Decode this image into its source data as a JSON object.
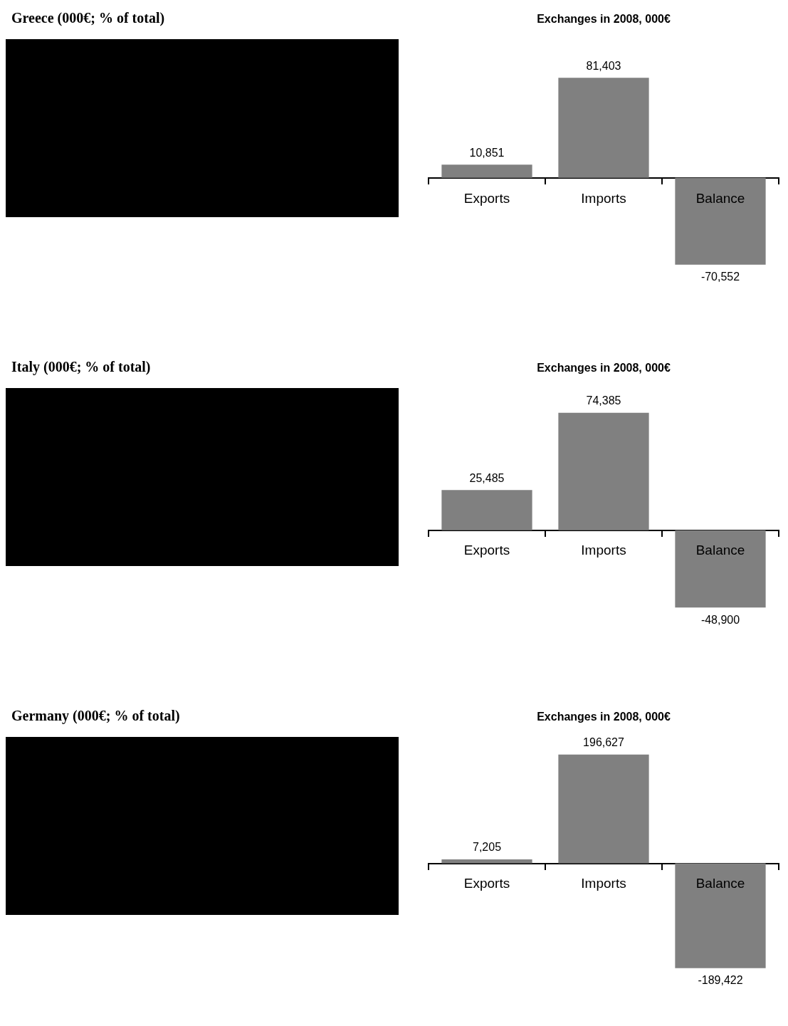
{
  "chart_data": [
    {
      "type": "other",
      "title": "Greece (000€; % of total)"
    },
    {
      "type": "bar",
      "title": "Exchanges in 2008, 000€",
      "categories": [
        "Exports",
        "Imports",
        "Balance"
      ],
      "values": [
        10851,
        81403,
        -70552
      ],
      "value_labels": [
        "10,851",
        "81,403",
        "-70,552"
      ],
      "color": "#808080"
    },
    {
      "type": "other",
      "title": "Italy (000€; % of total)"
    },
    {
      "type": "bar",
      "title": "Exchanges in 2008, 000€",
      "categories": [
        "Exports",
        "Imports",
        "Balance"
      ],
      "values": [
        25485,
        74385,
        -48900
      ],
      "value_labels": [
        "25,485",
        "74,385",
        "-48,900"
      ],
      "color": "#808080"
    },
    {
      "type": "other",
      "title": "Germany (000€; % of total)"
    },
    {
      "type": "bar",
      "title": "Exchanges in 2008, 000€",
      "categories": [
        "Exports",
        "Imports",
        "Balance"
      ],
      "values": [
        7205,
        196627,
        -189422
      ],
      "value_labels": [
        "7,205",
        "196,627",
        "-189,422"
      ],
      "color": "#808080"
    }
  ]
}
